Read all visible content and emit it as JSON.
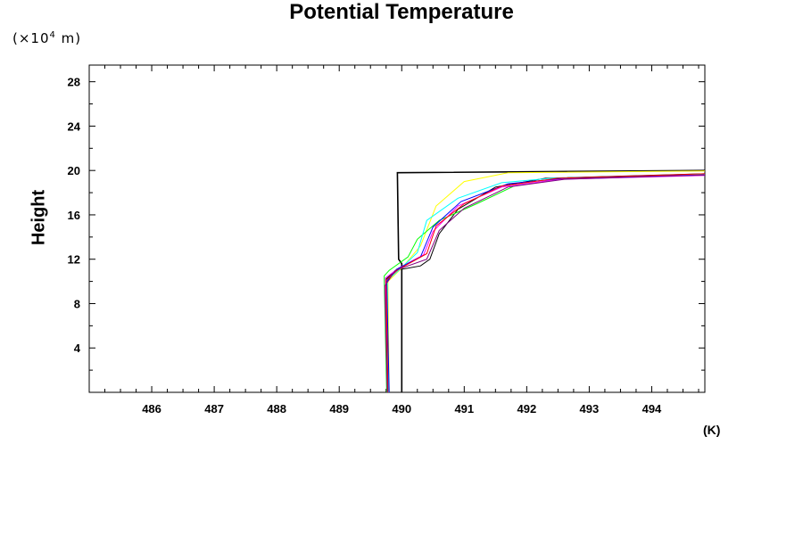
{
  "chart_data": {
    "type": "line",
    "title": "Potential Temperature",
    "ylabel": "Height",
    "y_scale_note": {
      "prefix": "(×10",
      "exp": "4",
      "suffix": " m)"
    },
    "x_unit_label": "(K)",
    "xlim": [
      485.0,
      494.85
    ],
    "ylim": [
      0.0,
      29.5
    ],
    "x_ticks": [
      486,
      487,
      488,
      489,
      490,
      491,
      492,
      493,
      494
    ],
    "x_tick_labels": [
      "486",
      "487",
      "488",
      "489",
      "490",
      "491",
      "492",
      "493",
      "494"
    ],
    "y_ticks": [
      4,
      8,
      12,
      16,
      20,
      24,
      28
    ],
    "y_tick_labels": [
      "4",
      "8",
      "12",
      "16",
      "20",
      "24",
      "28"
    ],
    "grid": false,
    "legend": "none",
    "series": [
      {
        "color": "#000000",
        "values": [
          [
            490.0,
            0.0
          ],
          [
            490.0,
            11.6
          ],
          [
            489.95,
            12.0
          ],
          [
            489.93,
            19.8
          ],
          [
            494.85,
            20.0
          ]
        ]
      },
      {
        "color": "#000000",
        "values": [
          [
            489.78,
            0.0
          ],
          [
            489.75,
            10.2
          ],
          [
            489.9,
            11.0
          ],
          [
            490.3,
            11.4
          ],
          [
            490.45,
            12.0
          ],
          [
            490.6,
            14.3
          ],
          [
            490.9,
            16.5
          ],
          [
            491.5,
            18.5
          ],
          [
            492.3,
            19.3
          ],
          [
            494.85,
            19.7
          ]
        ]
      },
      {
        "color": "#ffff00",
        "values": [
          [
            489.8,
            0.0
          ],
          [
            489.78,
            10.0
          ],
          [
            490.0,
            11.2
          ],
          [
            490.3,
            13.2
          ],
          [
            490.55,
            16.8
          ],
          [
            491.0,
            19.0
          ],
          [
            491.7,
            19.8
          ],
          [
            494.85,
            19.95
          ]
        ]
      },
      {
        "color": "#00ff00",
        "values": [
          [
            489.76,
            0.0
          ],
          [
            489.72,
            10.5
          ],
          [
            489.8,
            11.0
          ],
          [
            490.1,
            12.2
          ],
          [
            490.25,
            13.8
          ],
          [
            490.6,
            15.5
          ],
          [
            491.2,
            17.0
          ],
          [
            491.8,
            18.6
          ],
          [
            492.6,
            19.3
          ],
          [
            494.85,
            19.6
          ]
        ]
      },
      {
        "color": "#ff00ff",
        "values": [
          [
            489.77,
            0.0
          ],
          [
            489.74,
            10.3
          ],
          [
            489.95,
            11.2
          ],
          [
            490.35,
            12.4
          ],
          [
            490.5,
            14.5
          ],
          [
            490.9,
            16.8
          ],
          [
            491.6,
            18.5
          ],
          [
            492.5,
            19.2
          ],
          [
            494.85,
            19.55
          ]
        ]
      },
      {
        "color": "#00ffff",
        "values": [
          [
            489.79,
            0.0
          ],
          [
            489.77,
            10.1
          ],
          [
            489.95,
            11.0
          ],
          [
            490.25,
            12.6
          ],
          [
            490.4,
            15.5
          ],
          [
            490.9,
            17.5
          ],
          [
            491.6,
            18.9
          ],
          [
            492.4,
            19.3
          ],
          [
            494.85,
            19.65
          ]
        ]
      },
      {
        "color": "#0000ff",
        "values": [
          [
            489.8,
            0.0
          ],
          [
            489.76,
            10.0
          ],
          [
            489.92,
            11.1
          ],
          [
            490.3,
            12.2
          ],
          [
            490.5,
            14.9
          ],
          [
            490.95,
            17.2
          ],
          [
            491.7,
            18.8
          ],
          [
            492.6,
            19.3
          ],
          [
            494.85,
            19.6
          ]
        ]
      },
      {
        "color": "#ff0000",
        "values": [
          [
            489.78,
            0.0
          ],
          [
            489.75,
            10.1
          ],
          [
            489.95,
            11.1
          ],
          [
            490.4,
            12.5
          ],
          [
            490.55,
            15.0
          ],
          [
            491.0,
            17.0
          ],
          [
            491.6,
            18.6
          ],
          [
            492.5,
            19.3
          ],
          [
            494.85,
            19.7
          ]
        ]
      },
      {
        "color": "#800080",
        "values": [
          [
            489.77,
            0.0
          ],
          [
            489.73,
            9.6
          ],
          [
            489.9,
            11.0
          ],
          [
            490.4,
            12.0
          ],
          [
            490.6,
            14.6
          ],
          [
            491.0,
            16.6
          ],
          [
            491.7,
            18.5
          ],
          [
            492.6,
            19.2
          ],
          [
            494.85,
            19.6
          ]
        ]
      }
    ]
  }
}
